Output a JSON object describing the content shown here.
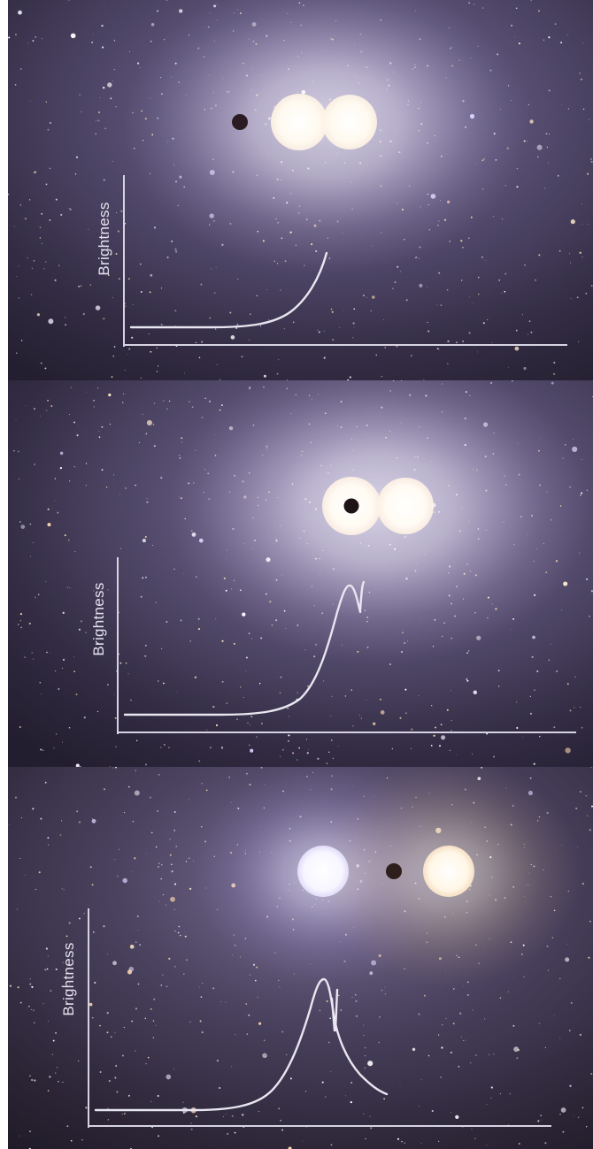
{
  "figure": {
    "panels": [
      {
        "id": "panel-1",
        "ylabel": "Brightness",
        "planet_position": "left of stars",
        "stars": [
          "white",
          "white"
        ],
        "star_colors": {
          "planet": "#2a1c22",
          "star_a": "#fffaf0",
          "star_b": "#fff4ea",
          "glow": "#c8bde0"
        }
      },
      {
        "id": "panel-2",
        "ylabel": "Brightness",
        "planet_position": "in front of first star",
        "stars": [
          "white",
          "white"
        ],
        "star_colors": {
          "planet": "#1e1418",
          "star_a": "#fffcf4",
          "star_b": "#fff2e6",
          "glow": "#cfc4e6"
        }
      },
      {
        "id": "panel-3",
        "ylabel": "Brightness",
        "planet_position": "between stars",
        "stars": [
          "blue-white",
          "warm white"
        ],
        "star_colors": {
          "planet": "#2e1e1c",
          "star_a": "#f6f4ff",
          "star_b": "#fff3dc",
          "glow": "#a89ac8"
        }
      }
    ],
    "colors": {
      "sky_dark": "#1f1a2b",
      "sky_mid": "#4a4262",
      "sky_glow": "#8c82aa",
      "axis": "#d6d3e2",
      "curve": "#e8e6f0",
      "label": "#e4e2ee"
    }
  }
}
